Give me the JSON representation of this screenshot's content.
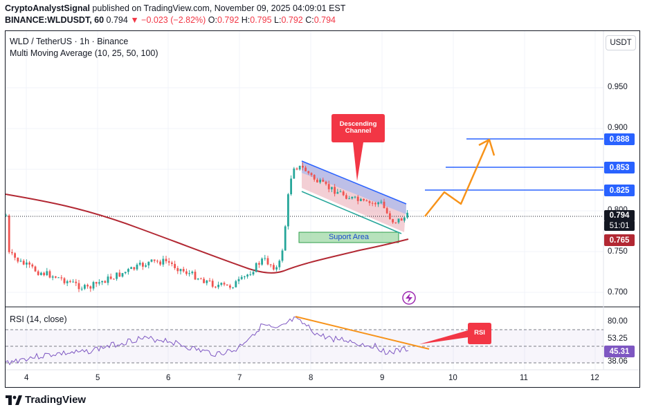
{
  "header": {
    "author": "CryptoAnalystSignal",
    "published_text": "published on TradingView.com, November 09, 2025 04:09:01 EST",
    "symbol": "BINANCE:WLDUSDT, 60",
    "last": "0.794",
    "change": "−0.023 (−2.82%)",
    "o_label": "O:",
    "o_value": "0.792",
    "h_label": "H:",
    "h_value": "0.795",
    "l_label": "L:",
    "l_value": "0.792",
    "c_label": "C:",
    "c_value": "0.794"
  },
  "legend": {
    "title": "WLD / TetherUS · 1h · Binance",
    "indicator": "Multi Moving Average (10, 25, 50, 100)",
    "rsi": "RSI (14, close)"
  },
  "currency_button": "USDT",
  "price_scale": [
    "0.950",
    "0.900",
    "0.800",
    "0.750",
    "0.700"
  ],
  "price_labels": {
    "l888": "0.888",
    "l853": "0.853",
    "l825": "0.825",
    "current": "0.794",
    "countdown": "51:01",
    "ma": "0.765"
  },
  "rsi_scale": {
    "top": "80.00",
    "mid": "53.25",
    "current": "45.31",
    "bottom": "38.06"
  },
  "x_axis": [
    "4",
    "5",
    "6",
    "7",
    "8",
    "9",
    "10",
    "11",
    "12"
  ],
  "annotations": {
    "descending_line1": "Descending",
    "descending_line2": "Channel",
    "support": "Suport Area",
    "rsi_callout": "RSI"
  },
  "footer": {
    "brand": "TradingView"
  },
  "colors": {
    "up": "#26a69a",
    "down": "#ef5350",
    "ma": "#b22833",
    "levels": "#2962ff",
    "projection": "#f7931a",
    "callout": "#f23645",
    "rsi_line": "#7e57c2"
  }
}
